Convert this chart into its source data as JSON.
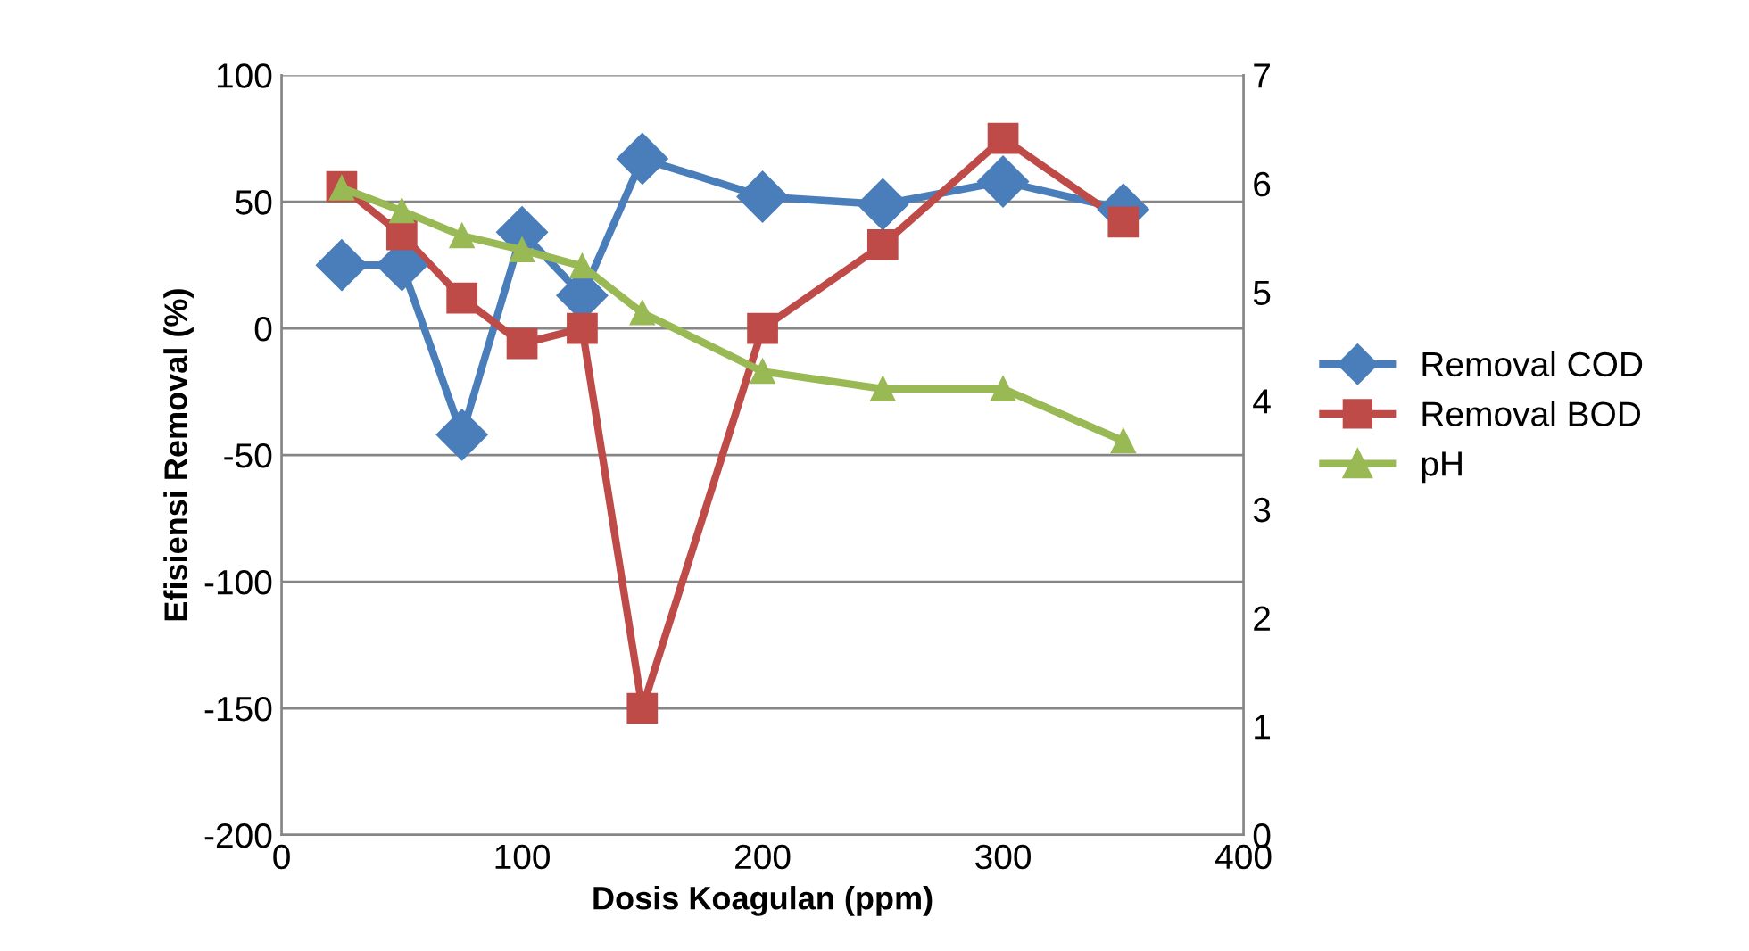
{
  "chart_data": {
    "type": "line",
    "xlabel": "Dosis Koagulan (ppm)",
    "ylabel": "Efisiensi Removal (%)",
    "x": [
      25,
      50,
      75,
      100,
      125,
      150,
      200,
      250,
      300,
      350
    ],
    "series": [
      {
        "name": "Removal COD",
        "color": "#4a7ebb",
        "marker": "diamond",
        "values": [
          25,
          25,
          -42,
          38,
          13,
          67,
          52,
          49,
          58,
          47
        ]
      },
      {
        "name": "Removal BOD",
        "color": "#be4b48",
        "marker": "square",
        "values": [
          56,
          37,
          12,
          -6,
          0,
          -150,
          0,
          33,
          75,
          42
        ]
      },
      {
        "name": "pH",
        "color": "#98b954",
        "marker": "triangle",
        "axis": "y2",
        "values": [
          5.96,
          5.75,
          5.52,
          5.39,
          5.24,
          4.81,
          4.27,
          4.11,
          4.11,
          3.63
        ]
      }
    ],
    "xlim": [
      0,
      400
    ],
    "xticks": [
      0,
      100,
      200,
      300,
      400
    ],
    "ylim": [
      -200,
      100
    ],
    "yticks": [
      -200,
      -150,
      -100,
      -50,
      0,
      50,
      100
    ],
    "y2lim": [
      0,
      7
    ],
    "y2ticks": [
      0,
      1,
      2,
      3,
      4,
      5,
      6,
      7
    ],
    "grid": "y",
    "legend": "right",
    "line_style": "solid"
  }
}
